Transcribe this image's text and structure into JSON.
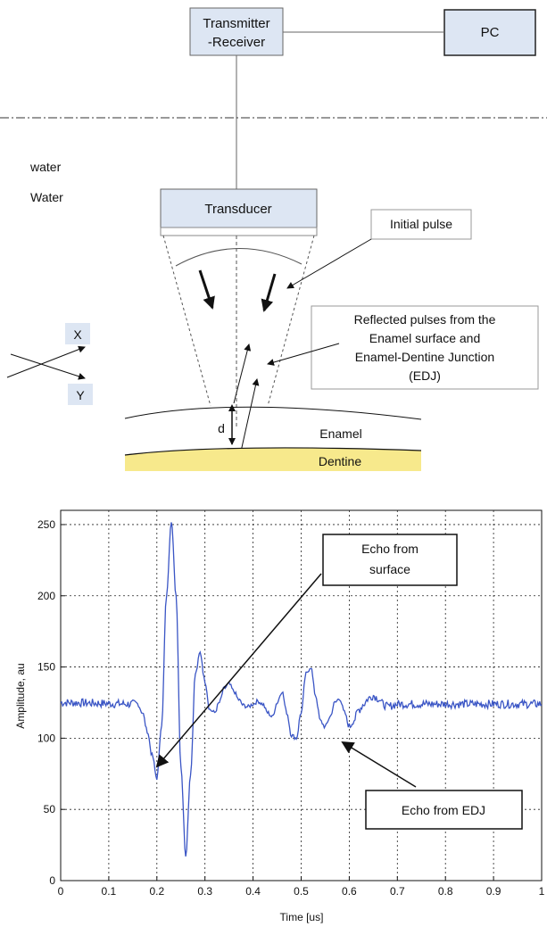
{
  "diagram": {
    "transmitter_receiver": {
      "line1": "Transmitter",
      "line2": "-Receiver"
    },
    "pc": "PC",
    "water_labels": [
      "water",
      "Water"
    ],
    "transducer": "Transducer",
    "initial_pulse": "Initial pulse",
    "reflected_pulses": [
      "Reflected pulses from the",
      "Enamel surface and",
      "Enamel-Dentine Junction",
      "(EDJ)"
    ],
    "axis_x": "X",
    "axis_y": "Y",
    "thickness": "d",
    "enamel": "Enamel",
    "dentine": "Dentine",
    "colors": {
      "box_fill": "#dde6f3",
      "dentine_fill": "#f7e98c",
      "signal": "#3a55c5"
    }
  },
  "chart_data": {
    "type": "line",
    "title": "",
    "xlabel": "Time [us]",
    "ylabel": "Amplitude, au",
    "xlim": [
      0,
      1
    ],
    "ylim": [
      0,
      260
    ],
    "xticks": [
      "0",
      "0.1",
      "0.2",
      "0.3",
      "0.4",
      "0.5",
      "0.6",
      "0.7",
      "0.8",
      "0.9",
      "1"
    ],
    "yticks": [
      "0",
      "50",
      "100",
      "150",
      "200",
      "250"
    ],
    "grid": true,
    "annotations": [
      "Echo from surface",
      "Echo from EDJ"
    ],
    "series": [
      {
        "x": [
          0,
          0.16,
          0.17,
          0.18,
          0.19,
          0.2,
          0.21,
          0.22,
          0.23,
          0.24,
          0.25,
          0.26,
          0.27,
          0.28,
          0.29,
          0.3,
          0.31,
          0.32,
          0.33,
          0.34,
          0.35,
          0.36,
          0.37,
          0.38,
          0.39,
          0.4,
          0.41,
          0.42,
          0.43,
          0.44,
          0.45,
          0.46,
          0.47,
          0.48,
          0.49,
          0.5,
          0.51,
          0.52,
          0.53,
          0.54,
          0.55,
          0.56,
          0.57,
          0.58,
          0.59,
          0.6,
          0.61,
          0.62,
          0.63,
          0.64,
          0.65,
          0.66,
          0.67,
          0.68,
          0.69,
          0.7,
          0.8,
          0.9,
          1.0
        ],
        "y": [
          125,
          124,
          118,
          105,
          88,
          72,
          110,
          200,
          253,
          200,
          80,
          18,
          75,
          145,
          160,
          140,
          120,
          118,
          125,
          135,
          138,
          133,
          127,
          123,
          122,
          124,
          126,
          124,
          118,
          115,
          125,
          133,
          118,
          102,
          100,
          118,
          145,
          150,
          130,
          112,
          108,
          115,
          125,
          128,
          118,
          108,
          113,
          120,
          124,
          128,
          130,
          128,
          124,
          122,
          123,
          124,
          124,
          124,
          124
        ]
      }
    ]
  }
}
